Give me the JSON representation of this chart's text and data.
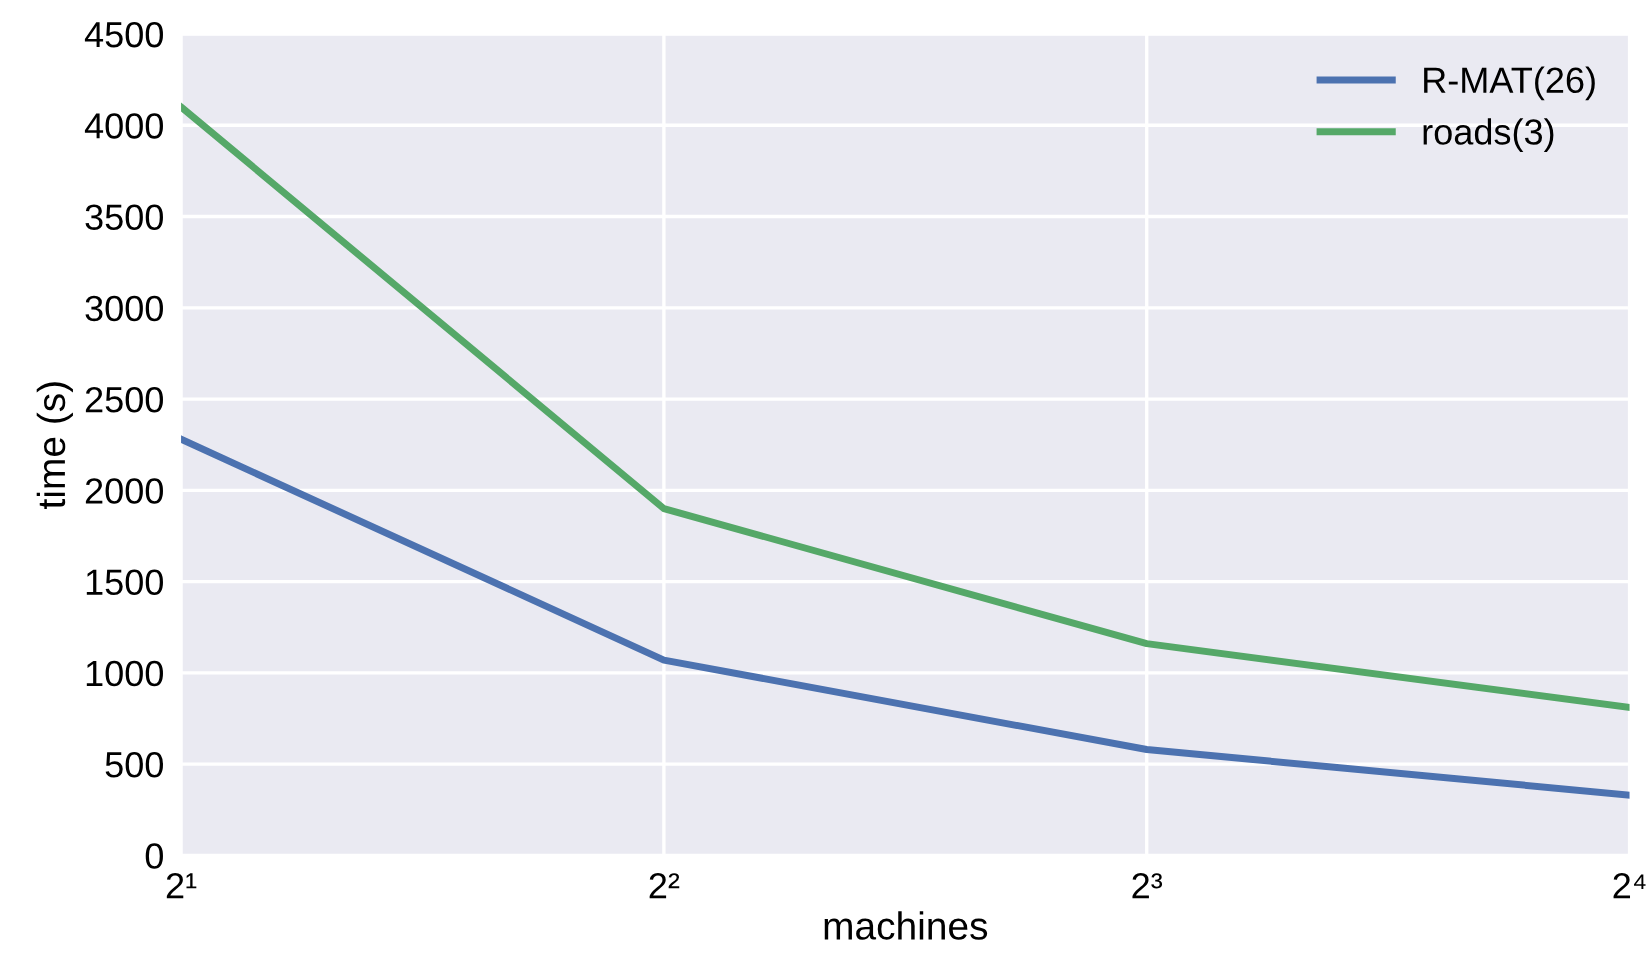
{
  "chart_data": {
    "type": "line",
    "xlabel": "machines",
    "ylabel": "time (s)",
    "x": [
      2,
      4,
      8,
      16
    ],
    "series": [
      {
        "name": "R-MAT(26)",
        "color": "#4c72b0",
        "values": [
          2280,
          1070,
          580,
          330
        ]
      },
      {
        "name": "roads(3)",
        "color": "#55a868",
        "values": [
          4100,
          1900,
          1160,
          810
        ]
      }
    ],
    "log": "x",
    "xlim": [
      2,
      16
    ],
    "xticks": [
      {
        "value": 2,
        "label": "2¹"
      },
      {
        "value": 4,
        "label": "2²"
      },
      {
        "value": 8,
        "label": "2³"
      },
      {
        "value": 16,
        "label": "2⁴"
      }
    ],
    "ylim": [
      0,
      4500
    ],
    "yticks": [
      0,
      500,
      1000,
      1500,
      2000,
      2500,
      3000,
      3500,
      4000,
      4500
    ],
    "grid": true,
    "legend": "top right",
    "marker": "none",
    "line_style": "solid"
  }
}
